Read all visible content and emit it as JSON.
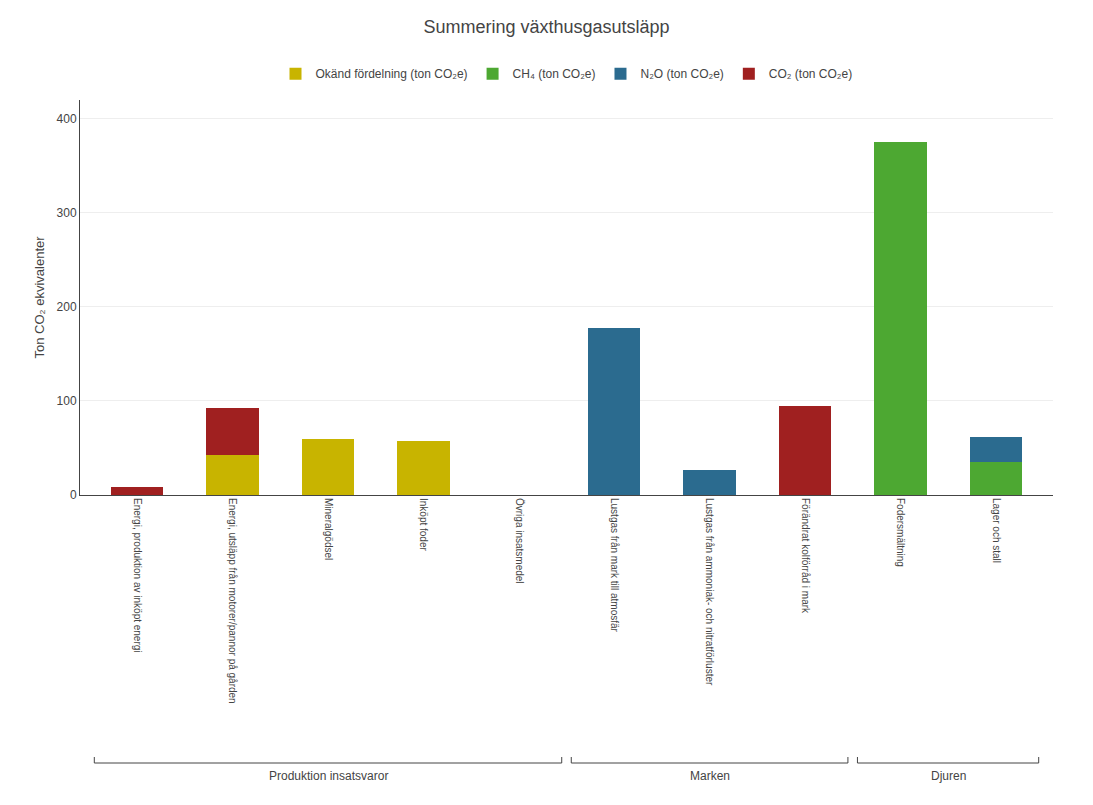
{
  "chart_data": {
    "type": "bar",
    "stacked": true,
    "title": "Summering växthusgasutsläpp",
    "ylabel": "Ton CO₂ ekvivalenter",
    "categories": [
      "Energi, produktion av inköpt energi",
      "Energi, utsläpp från motorer/pannor på gården",
      "Mineralgödsel",
      "Inköpt foder",
      "Övriga insatsmedel",
      "Lustgas från mark till atmosfär",
      "Lustgas från ammoniak- och nitratförluster",
      "Förändrat kolförråd i mark",
      "Fodersmältning",
      "Lager och stall"
    ],
    "series": [
      {
        "name": "Okänd fördelning (ton CO₂e)",
        "color": "#c8b400",
        "values": [
          0,
          43,
          60,
          57,
          0,
          0,
          0,
          0,
          0,
          0
        ]
      },
      {
        "name": "CH₄ (ton CO₂e)",
        "color": "#4da832",
        "values": [
          0,
          0,
          0,
          0,
          0,
          0,
          0,
          0,
          375,
          35
        ]
      },
      {
        "name": "N₂O (ton CO₂e)",
        "color": "#2b6b8f",
        "values": [
          0,
          0,
          0,
          0,
          0,
          178,
          27,
          0,
          0,
          27
        ]
      },
      {
        "name": "CO₂ (ton CO₂e)",
        "color": "#a02020",
        "values": [
          8,
          50,
          0,
          0,
          0,
          0,
          0,
          95,
          0,
          0
        ]
      }
    ],
    "annotations": [
      {
        "text": "Produktion insatsvaror",
        "start": 0,
        "end": 4
      },
      {
        "text": "Marken",
        "start": 5,
        "end": 7
      },
      {
        "text": "Djuren",
        "start": 8,
        "end": 9
      }
    ],
    "ylim": [
      0,
      420
    ],
    "yticks": [
      0,
      100,
      200,
      300,
      400
    ],
    "grid": true,
    "legend": "top"
  }
}
